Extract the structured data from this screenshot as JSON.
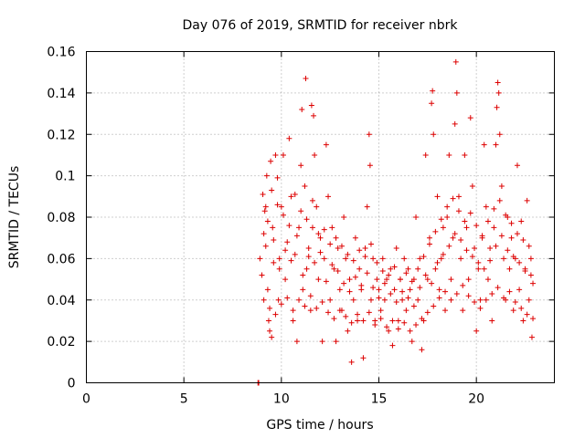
{
  "chart_data": {
    "type": "scatter",
    "title": "Day 076 of 2019, SRMTID for receiver nbrk",
    "xlabel": "GPS time / hours",
    "ylabel": "SRMTID / TECUs",
    "xlim": [
      0,
      24
    ],
    "ylim": [
      0,
      0.16
    ],
    "xticks": [
      0,
      5,
      10,
      15,
      20
    ],
    "xtick_labels": [
      "0",
      "5",
      "10",
      "15",
      "20"
    ],
    "yticks": [
      0,
      0.02,
      0.04,
      0.06,
      0.08,
      0.1,
      0.12,
      0.14,
      0.16
    ],
    "ytick_labels": [
      "0",
      "0.02",
      "0.04",
      "0.06",
      "0.08",
      "0.1",
      "0.12",
      "0.14",
      "0.16"
    ],
    "grid": true,
    "marker": "plus",
    "series": [
      {
        "name": "SRMTID",
        "color": "#dd0000",
        "points": [
          [
            8.8,
            0.0
          ],
          [
            8.82,
            0.0
          ],
          [
            8.84,
            0.0
          ],
          [
            8.9,
            0.06
          ],
          [
            9.0,
            0.052
          ],
          [
            9.05,
            0.091
          ],
          [
            9.1,
            0.072
          ],
          [
            9.15,
            0.083
          ],
          [
            9.2,
            0.066
          ],
          [
            9.25,
            0.1
          ],
          [
            9.3,
            0.045
          ],
          [
            9.35,
            0.03
          ],
          [
            9.4,
            0.025
          ],
          [
            9.45,
            0.107
          ],
          [
            9.5,
            0.022
          ],
          [
            9.55,
            0.075
          ],
          [
            9.6,
            0.058
          ],
          [
            9.7,
            0.11
          ],
          [
            9.8,
            0.099
          ],
          [
            9.85,
            0.04
          ],
          [
            9.9,
            0.06
          ],
          [
            10.0,
            0.085
          ],
          [
            10.1,
            0.11
          ],
          [
            10.2,
            0.05
          ],
          [
            10.3,
            0.068
          ],
          [
            10.4,
            0.118
          ],
          [
            10.5,
            0.09
          ],
          [
            10.6,
            0.03
          ],
          [
            10.7,
            0.062
          ],
          [
            10.8,
            0.02
          ],
          [
            10.9,
            0.075
          ],
          [
            11.0,
            0.105
          ],
          [
            11.05,
            0.132
          ],
          [
            11.1,
            0.045
          ],
          [
            11.2,
            0.095
          ],
          [
            11.25,
            0.147
          ],
          [
            11.3,
            0.055
          ],
          [
            11.4,
            0.065
          ],
          [
            11.5,
            0.035
          ],
          [
            11.55,
            0.134
          ],
          [
            11.6,
            0.075
          ],
          [
            11.65,
            0.129
          ],
          [
            11.7,
            0.11
          ],
          [
            11.8,
            0.085
          ],
          [
            11.9,
            0.05
          ],
          [
            12.0,
            0.07
          ],
          [
            12.1,
            0.02
          ],
          [
            12.2,
            0.06
          ],
          [
            12.3,
            0.115
          ],
          [
            12.4,
            0.09
          ],
          [
            12.5,
            0.04
          ],
          [
            12.6,
            0.075
          ],
          [
            12.7,
            0.055
          ],
          [
            12.8,
            0.02
          ],
          [
            12.9,
            0.065
          ],
          [
            13.0,
            0.045
          ],
          [
            13.1,
            0.035
          ],
          [
            13.2,
            0.08
          ],
          [
            13.3,
            0.06
          ],
          [
            13.4,
            0.025
          ],
          [
            13.5,
            0.05
          ],
          [
            13.6,
            0.01
          ],
          [
            13.7,
            0.04
          ],
          [
            13.8,
            0.07
          ],
          [
            13.9,
            0.03
          ],
          [
            14.0,
            0.055
          ],
          [
            14.1,
            0.045
          ],
          [
            14.2,
            0.012
          ],
          [
            14.3,
            0.065
          ],
          [
            14.4,
            0.085
          ],
          [
            14.5,
            0.12
          ],
          [
            14.55,
            0.105
          ],
          [
            14.6,
            0.04
          ],
          [
            14.7,
            0.06
          ],
          [
            14.8,
            0.03
          ],
          [
            14.9,
            0.05
          ],
          [
            15.0,
            0.045
          ],
          [
            15.1,
            0.035
          ],
          [
            15.2,
            0.06
          ],
          [
            15.3,
            0.04
          ],
          [
            15.4,
            0.05
          ],
          [
            15.5,
            0.025
          ],
          [
            15.6,
            0.055
          ],
          [
            15.7,
            0.018
          ],
          [
            15.8,
            0.045
          ],
          [
            15.9,
            0.065
          ],
          [
            16.0,
            0.03
          ],
          [
            16.1,
            0.05
          ],
          [
            16.2,
            0.04
          ],
          [
            16.3,
            0.06
          ],
          [
            16.4,
            0.035
          ],
          [
            16.5,
            0.055
          ],
          [
            16.6,
            0.045
          ],
          [
            16.7,
            0.02
          ],
          [
            16.8,
            0.05
          ],
          [
            16.9,
            0.08
          ],
          [
            17.0,
            0.04
          ],
          [
            17.1,
            0.06
          ],
          [
            17.2,
            0.016
          ],
          [
            17.3,
            0.03
          ],
          [
            17.4,
            0.11
          ],
          [
            17.5,
            0.05
          ],
          [
            17.6,
            0.07
          ],
          [
            17.7,
            0.135
          ],
          [
            17.75,
            0.141
          ],
          [
            17.8,
            0.12
          ],
          [
            17.9,
            0.055
          ],
          [
            18.0,
            0.09
          ],
          [
            18.1,
            0.045
          ],
          [
            18.2,
            0.06
          ],
          [
            18.3,
            0.075
          ],
          [
            18.4,
            0.035
          ],
          [
            18.5,
            0.08
          ],
          [
            18.6,
            0.11
          ],
          [
            18.7,
            0.05
          ],
          [
            18.8,
            0.07
          ],
          [
            18.9,
            0.125
          ],
          [
            18.95,
            0.155
          ],
          [
            19.0,
            0.14
          ],
          [
            19.1,
            0.09
          ],
          [
            19.2,
            0.06
          ],
          [
            19.3,
            0.035
          ],
          [
            19.4,
            0.11
          ],
          [
            19.5,
            0.075
          ],
          [
            19.6,
            0.05
          ],
          [
            19.7,
            0.128
          ],
          [
            19.8,
            0.095
          ],
          [
            19.9,
            0.065
          ],
          [
            20.0,
            0.025
          ],
          [
            20.1,
            0.055
          ],
          [
            20.2,
            0.04
          ],
          [
            20.3,
            0.07
          ],
          [
            20.4,
            0.115
          ],
          [
            20.5,
            0.085
          ],
          [
            20.6,
            0.05
          ],
          [
            20.7,
            0.065
          ],
          [
            20.8,
            0.03
          ],
          [
            20.9,
            0.075
          ],
          [
            21.0,
            0.115
          ],
          [
            21.05,
            0.133
          ],
          [
            21.1,
            0.145
          ],
          [
            21.15,
            0.14
          ],
          [
            21.2,
            0.12
          ],
          [
            21.3,
            0.095
          ],
          [
            21.4,
            0.06
          ],
          [
            21.5,
            0.04
          ],
          [
            21.6,
            0.08
          ],
          [
            21.7,
            0.055
          ],
          [
            21.8,
            0.07
          ],
          [
            21.9,
            0.035
          ],
          [
            22.0,
            0.06
          ],
          [
            22.1,
            0.105
          ],
          [
            22.2,
            0.045
          ],
          [
            22.3,
            0.078
          ],
          [
            22.4,
            0.03
          ],
          [
            22.5,
            0.055
          ],
          [
            22.6,
            0.088
          ],
          [
            22.7,
            0.04
          ],
          [
            22.8,
            0.06
          ],
          [
            22.85,
            0.022
          ],
          [
            22.9,
            0.048
          ],
          [
            9.3,
            0.078
          ],
          [
            9.6,
            0.069
          ],
          [
            9.9,
            0.055
          ],
          [
            10.2,
            0.064
          ],
          [
            10.5,
            0.059
          ],
          [
            10.8,
            0.071
          ],
          [
            11.1,
            0.052
          ],
          [
            11.4,
            0.061
          ],
          [
            11.7,
            0.058
          ],
          [
            12.0,
            0.063
          ],
          [
            12.3,
            0.049
          ],
          [
            12.6,
            0.057
          ],
          [
            12.9,
            0.054
          ],
          [
            13.2,
            0.048
          ],
          [
            13.5,
            0.044
          ],
          [
            13.8,
            0.051
          ],
          [
            14.1,
            0.047
          ],
          [
            14.4,
            0.053
          ],
          [
            14.7,
            0.046
          ],
          [
            15.0,
            0.041
          ],
          [
            15.3,
            0.048
          ],
          [
            15.6,
            0.043
          ],
          [
            15.9,
            0.039
          ],
          [
            16.2,
            0.044
          ],
          [
            16.5,
            0.041
          ],
          [
            16.8,
            0.037
          ],
          [
            17.1,
            0.046
          ],
          [
            17.4,
            0.052
          ],
          [
            17.7,
            0.048
          ],
          [
            18.0,
            0.058
          ],
          [
            18.3,
            0.062
          ],
          [
            18.6,
            0.066
          ],
          [
            18.9,
            0.072
          ],
          [
            19.2,
            0.069
          ],
          [
            19.5,
            0.064
          ],
          [
            19.8,
            0.061
          ],
          [
            20.1,
            0.058
          ],
          [
            20.4,
            0.055
          ],
          [
            20.7,
            0.059
          ],
          [
            21.0,
            0.066
          ],
          [
            21.3,
            0.071
          ],
          [
            21.6,
            0.064
          ],
          [
            21.9,
            0.061
          ],
          [
            22.2,
            0.058
          ],
          [
            22.5,
            0.054
          ],
          [
            22.8,
            0.052
          ],
          [
            9.2,
            0.085
          ],
          [
            9.5,
            0.093
          ],
          [
            9.8,
            0.086
          ],
          [
            10.1,
            0.081
          ],
          [
            10.4,
            0.076
          ],
          [
            10.7,
            0.091
          ],
          [
            11.0,
            0.083
          ],
          [
            11.3,
            0.079
          ],
          [
            11.6,
            0.088
          ],
          [
            11.9,
            0.072
          ],
          [
            12.2,
            0.074
          ],
          [
            12.5,
            0.067
          ],
          [
            12.8,
            0.07
          ],
          [
            13.1,
            0.066
          ],
          [
            13.4,
            0.062
          ],
          [
            13.7,
            0.059
          ],
          [
            14.0,
            0.064
          ],
          [
            14.3,
            0.061
          ],
          [
            14.6,
            0.067
          ],
          [
            14.9,
            0.058
          ],
          [
            15.2,
            0.054
          ],
          [
            15.5,
            0.052
          ],
          [
            15.8,
            0.056
          ],
          [
            16.1,
            0.05
          ],
          [
            16.4,
            0.053
          ],
          [
            16.7,
            0.049
          ],
          [
            17.0,
            0.055
          ],
          [
            17.3,
            0.061
          ],
          [
            17.6,
            0.067
          ],
          [
            17.9,
            0.073
          ],
          [
            18.2,
            0.079
          ],
          [
            18.5,
            0.085
          ],
          [
            18.8,
            0.089
          ],
          [
            19.1,
            0.083
          ],
          [
            19.4,
            0.078
          ],
          [
            19.7,
            0.082
          ],
          [
            20.0,
            0.076
          ],
          [
            20.3,
            0.071
          ],
          [
            20.6,
            0.078
          ],
          [
            20.9,
            0.084
          ],
          [
            21.2,
            0.088
          ],
          [
            21.5,
            0.081
          ],
          [
            21.8,
            0.077
          ],
          [
            22.1,
            0.072
          ],
          [
            22.4,
            0.069
          ],
          [
            22.7,
            0.066
          ],
          [
            9.1,
            0.04
          ],
          [
            9.4,
            0.036
          ],
          [
            9.7,
            0.033
          ],
          [
            10.0,
            0.038
          ],
          [
            10.3,
            0.041
          ],
          [
            10.6,
            0.035
          ],
          [
            10.9,
            0.04
          ],
          [
            11.2,
            0.037
          ],
          [
            11.5,
            0.042
          ],
          [
            11.8,
            0.036
          ],
          [
            12.1,
            0.039
          ],
          [
            12.4,
            0.034
          ],
          [
            12.7,
            0.031
          ],
          [
            13.0,
            0.035
          ],
          [
            13.3,
            0.032
          ],
          [
            13.6,
            0.029
          ],
          [
            13.9,
            0.033
          ],
          [
            14.2,
            0.03
          ],
          [
            14.5,
            0.034
          ],
          [
            14.8,
            0.028
          ],
          [
            15.1,
            0.031
          ],
          [
            15.4,
            0.027
          ],
          [
            15.7,
            0.03
          ],
          [
            16.0,
            0.026
          ],
          [
            16.3,
            0.029
          ],
          [
            16.6,
            0.025
          ],
          [
            16.9,
            0.028
          ],
          [
            17.2,
            0.031
          ],
          [
            17.5,
            0.034
          ],
          [
            17.8,
            0.037
          ],
          [
            18.1,
            0.041
          ],
          [
            18.4,
            0.044
          ],
          [
            18.7,
            0.04
          ],
          [
            19.0,
            0.043
          ],
          [
            19.3,
            0.047
          ],
          [
            19.6,
            0.042
          ],
          [
            19.9,
            0.039
          ],
          [
            20.2,
            0.036
          ],
          [
            20.5,
            0.04
          ],
          [
            20.8,
            0.043
          ],
          [
            21.1,
            0.046
          ],
          [
            21.4,
            0.041
          ],
          [
            21.7,
            0.044
          ],
          [
            22.0,
            0.039
          ],
          [
            22.3,
            0.036
          ],
          [
            22.6,
            0.033
          ],
          [
            22.9,
            0.031
          ]
        ]
      }
    ]
  }
}
